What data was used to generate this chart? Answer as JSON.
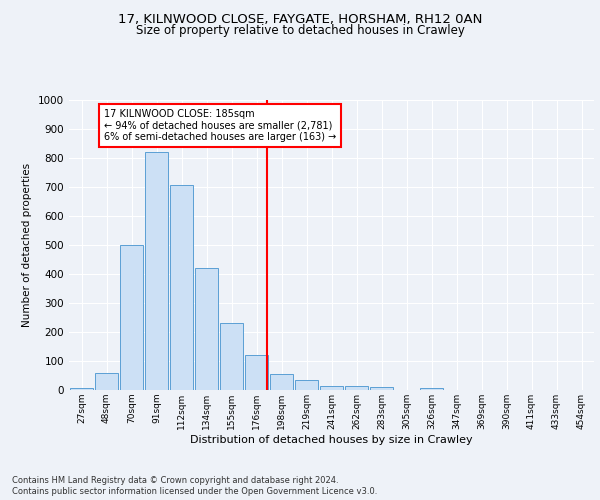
{
  "title1": "17, KILNWOOD CLOSE, FAYGATE, HORSHAM, RH12 0AN",
  "title2": "Size of property relative to detached houses in Crawley",
  "xlabel": "Distribution of detached houses by size in Crawley",
  "ylabel": "Number of detached properties",
  "bin_labels": [
    "27sqm",
    "48sqm",
    "70sqm",
    "91sqm",
    "112sqm",
    "134sqm",
    "155sqm",
    "176sqm",
    "198sqm",
    "219sqm",
    "241sqm",
    "262sqm",
    "283sqm",
    "305sqm",
    "326sqm",
    "347sqm",
    "369sqm",
    "390sqm",
    "411sqm",
    "433sqm",
    "454sqm"
  ],
  "bar_values": [
    7,
    60,
    500,
    820,
    707,
    420,
    230,
    120,
    55,
    33,
    13,
    13,
    10,
    0,
    8,
    0,
    0,
    0,
    0,
    0,
    0
  ],
  "bar_color": "#cce0f5",
  "bar_edge_color": "#5a9fd4",
  "annotation_text": "17 KILNWOOD CLOSE: 185sqm\n← 94% of detached houses are smaller (2,781)\n6% of semi-detached houses are larger (163) →",
  "annotation_box_color": "white",
  "annotation_box_edge": "red",
  "vline_color": "red",
  "ylim": [
    0,
    1000
  ],
  "yticks": [
    0,
    100,
    200,
    300,
    400,
    500,
    600,
    700,
    800,
    900,
    1000
  ],
  "footer1": "Contains HM Land Registry data © Crown copyright and database right 2024.",
  "footer2": "Contains public sector information licensed under the Open Government Licence v3.0.",
  "bg_color": "#eef2f8",
  "plot_bg_color": "#eef2f8"
}
